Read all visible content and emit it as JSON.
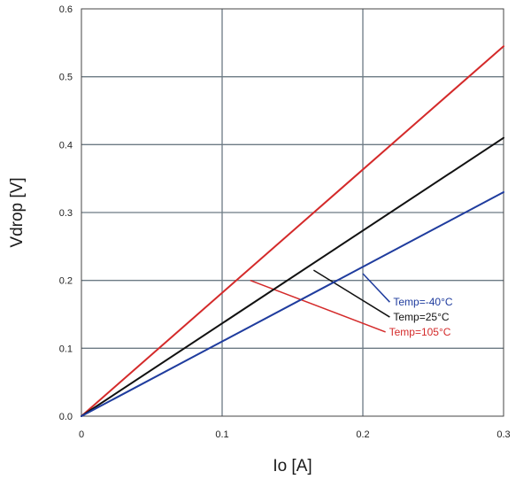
{
  "chart_data": {
    "type": "line",
    "title": "",
    "xlabel": "Io [A]",
    "ylabel": "Vdrop  [V]",
    "xlim": [
      0,
      0.3
    ],
    "ylim": [
      0,
      0.6
    ],
    "grid": true,
    "x_ticks": [
      {
        "value": 0,
        "label": "0"
      },
      {
        "value": 0.1,
        "label": "0.1"
      },
      {
        "value": 0.2,
        "label": "0.2"
      },
      {
        "value": 0.3,
        "label": "0.3"
      }
    ],
    "y_ticks": [
      {
        "value": 0,
        "label": "0.0"
      },
      {
        "value": 0.1,
        "label": "0.1"
      },
      {
        "value": 0.2,
        "label": "0.2"
      },
      {
        "value": 0.3,
        "label": "0.3"
      },
      {
        "value": 0.4,
        "label": "0.4"
      },
      {
        "value": 0.5,
        "label": "0.5"
      },
      {
        "value": 0.6,
        "label": "0.6"
      }
    ],
    "series": [
      {
        "key": "temp-105",
        "name": "Temp=105°C",
        "color": "#d42a2a",
        "points": [
          [
            0,
            0
          ],
          [
            0.3,
            0.545
          ]
        ],
        "callout_anchor": [
          0.12,
          0.2
        ],
        "callout_label_at": [
          0.218,
          0.124
        ]
      },
      {
        "key": "temp-25",
        "name": "Temp=25°C",
        "color": "#111111",
        "points": [
          [
            0,
            0
          ],
          [
            0.3,
            0.41
          ]
        ],
        "callout_anchor": [
          0.165,
          0.215
        ],
        "callout_label_at": [
          0.221,
          0.146
        ]
      },
      {
        "key": "temp-neg40",
        "name": "Temp=-40°C",
        "color": "#1f3c9e",
        "points": [
          [
            0,
            0
          ],
          [
            0.3,
            0.33
          ]
        ],
        "callout_anchor": [
          0.2,
          0.21
        ],
        "callout_label_at": [
          0.221,
          0.168
        ]
      }
    ]
  }
}
